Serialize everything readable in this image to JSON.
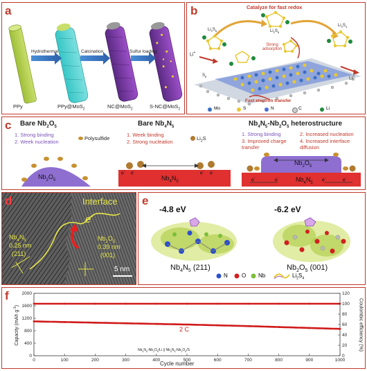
{
  "panel_a": {
    "label": "a",
    "stages": [
      "PPy",
      "PPy@MoS",
      "NC@MoS",
      "S-NC@MoS"
    ],
    "stage_subscripts": [
      "",
      "2",
      "2",
      "2"
    ],
    "arrows": [
      "Hydrothermal",
      "Calcination",
      "Sulfur loading"
    ]
  },
  "panel_b": {
    "label": "b",
    "title": "Catalyze for fast redox",
    "adsorption": "Strong adsorption",
    "electron": "Fast electron transfer",
    "li_plus": "Li",
    "species": [
      "Li",
      "S"
    ],
    "legend": [
      "Mo",
      "S",
      "Nb",
      "C",
      "Li"
    ],
    "legend_display": [
      "Mo",
      "S",
      "N",
      "C",
      "Li"
    ],
    "colors": {
      "Mo": "#3a6fc4",
      "S": "#e8c832",
      "N": "#c8c8c8",
      "C": "#666666",
      "Li": "#1f8a3c"
    }
  },
  "panel_c": {
    "label": "c",
    "col1": {
      "title": "Bare Nb",
      "items": [
        "1. Strong binding",
        "2. Week nucleation"
      ]
    },
    "col2": {
      "title": "Bare Nb",
      "items": [
        "1. Week binding",
        "2. Strong nucleation"
      ]
    },
    "col3": {
      "title": "Nb",
      "items": [
        "1. Strong binding",
        "2. Increased nucleation",
        "3. Improved charge transfer",
        "4. Increased interface diffusion"
      ]
    },
    "polysulfide": "Polysulfide",
    "li2s": "Li",
    "nb2o5": "Nb",
    "nb4n5": "Nb",
    "electron": "e"
  },
  "panel_d": {
    "label": "d",
    "interface": "Interface",
    "electron": "e",
    "left": [
      "Nb",
      "0.25 nm",
      "(211)"
    ],
    "right": [
      "Nb",
      "0.39 nm",
      "(001)"
    ],
    "scale": "5 nm"
  },
  "panel_e": {
    "label": "e",
    "energy1": "-4.8 eV",
    "energy2": "-6.2 eV",
    "name1": "Nb",
    "name1_hkl": "(211)",
    "name2": "Nb",
    "name2_hkl": "(001)",
    "legend": [
      "N",
      "O",
      "Nb",
      "Li"
    ],
    "colors": {
      "N": "#2d4fd0",
      "O": "#d02020",
      "Nb": "#7bbf3a",
      "Li2S4": "#9b59b6"
    }
  },
  "panel_f": {
    "label": "f",
    "ylabel_left": "Capacity (mAh g",
    "ylabel_right": "Coulombic efficiency (%)",
    "xlabel": "Cycle number",
    "rate": "2 C",
    "cell_label": "Nb",
    "yticks_left": [
      "0",
      "400",
      "800",
      "1200",
      "1600",
      "2000"
    ],
    "yticks_right": [
      "0",
      "20",
      "40",
      "60",
      "80",
      "100",
      "120"
    ],
    "xticks": [
      "0",
      "100",
      "200",
      "300",
      "400",
      "500",
      "600",
      "700",
      "800",
      "900",
      "1000"
    ]
  },
  "chart_data": {
    "type": "scatter",
    "xlabel": "Cycle number",
    "ylabel": "Capacity (mAh g-1)",
    "y2label": "Coulombic efficiency (%)",
    "xlim": [
      0,
      1000
    ],
    "ylim": [
      0,
      2000
    ],
    "y2lim": [
      0,
      120
    ],
    "annotation": "2 C",
    "series": [
      {
        "axis": "right",
        "x": [
          0,
          100,
          200,
          300,
          400,
          500,
          600,
          700,
          800,
          900,
          1000
        ],
        "values": [
          100,
          100,
          100,
          100,
          100,
          100,
          100,
          100,
          100,
          100,
          100
        ]
      },
      {
        "axis": "left",
        "x": [
          0,
          100,
          200,
          300,
          400,
          500,
          600,
          700,
          800,
          900,
          1000
        ],
        "values": [
          1100,
          1080,
          1060,
          1040,
          1020,
          1000,
          975,
          950,
          920,
          890,
          860
        ]
      }
    ]
  }
}
